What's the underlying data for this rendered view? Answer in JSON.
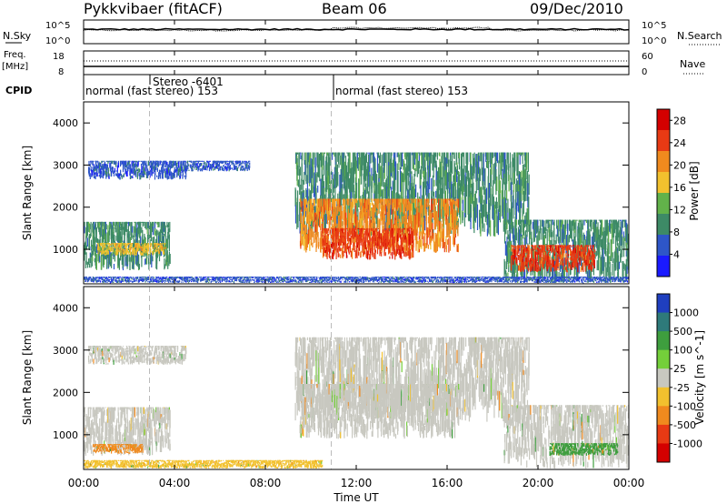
{
  "header": {
    "site": "Pykkvibaer (fitACF)",
    "beam": "Beam 06",
    "date": "09/Dec/2010"
  },
  "noise_panel": {
    "left_label": "N.Sky",
    "right_label": "N.Search",
    "left_ticks": [
      "10^5",
      "10^0"
    ],
    "right_ticks": [
      "10^5",
      "10^0"
    ]
  },
  "freq_panel": {
    "left_label_top": "Freq.",
    "left_label_bottom": "[MHz]",
    "left_ticks": [
      "18",
      "8"
    ],
    "right_ticks": [
      "60",
      "0"
    ],
    "right_label": "Nave"
  },
  "cpid": {
    "label": "CPID",
    "segments": [
      {
        "start_hour": 0,
        "label": "normal (fast stereo) 153"
      },
      {
        "start_hour": 2.9,
        "label": "Stereo -6401"
      },
      {
        "start_hour": 10.9,
        "label": "normal (fast stereo) 153"
      }
    ]
  },
  "x_axis": {
    "label": "Time UT",
    "ticks": [
      "00:00",
      "04:00",
      "08:00",
      "12:00",
      "16:00",
      "20:00",
      "00:00"
    ],
    "range_hours": [
      0,
      24
    ]
  },
  "chart_data": [
    {
      "type": "heatmap",
      "ylabel": "Slant Range [km]",
      "ylim": [
        180,
        4500
      ],
      "y_ticks": [
        1000,
        2000,
        3000,
        4000
      ],
      "colorbar": {
        "label": "Power [dB]",
        "ticks": [
          4,
          8,
          12,
          16,
          20,
          24,
          28
        ],
        "range": [
          0,
          30
        ],
        "colors": [
          "#1a1aff",
          "#2e56c8",
          "#3d8a66",
          "#62b24a",
          "#f2c12e",
          "#f08a1e",
          "#e83a14",
          "#d40000"
        ]
      },
      "regions": [
        {
          "t": [
            0,
            3.8
          ],
          "r": [
            500,
            1650
          ],
          "level": 9
        },
        {
          "t": [
            0.6,
            3.6
          ],
          "r": [
            850,
            1150
          ],
          "level": 18
        },
        {
          "t": [
            0.2,
            4.5
          ],
          "r": [
            2650,
            3100
          ],
          "level": 6
        },
        {
          "t": [
            4.5,
            7.3
          ],
          "r": [
            2850,
            3100
          ],
          "level": 5
        },
        {
          "t": [
            9.3,
            19.6
          ],
          "r": [
            1300,
            3300
          ],
          "level": 10
        },
        {
          "t": [
            9.5,
            16.5
          ],
          "r": [
            900,
            2200
          ],
          "level": 20
        },
        {
          "t": [
            10.5,
            14.5
          ],
          "r": [
            750,
            1500
          ],
          "level": 26
        },
        {
          "t": [
            18.5,
            24
          ],
          "r": [
            200,
            1700
          ],
          "level": 10
        },
        {
          "t": [
            18.8,
            22.5
          ],
          "r": [
            450,
            1100
          ],
          "level": 25
        },
        {
          "t": [
            0,
            24
          ],
          "r": [
            200,
            350
          ],
          "level": 7
        }
      ]
    },
    {
      "type": "heatmap",
      "ylabel": "Slant Range [km]",
      "ylim": [
        180,
        4500
      ],
      "y_ticks": [
        1000,
        2000,
        3000,
        4000
      ],
      "colorbar": {
        "label": "Velocity [m s^-1]",
        "ticks": [
          1000,
          500,
          100,
          25,
          -25,
          -100,
          -500,
          -1000
        ],
        "colors": [
          "#1f3fbf",
          "#2e7a7a",
          "#3e9e3e",
          "#74cf3a",
          "#c8c8c0",
          "#f2c12e",
          "#f08a1e",
          "#e83a14",
          "#d40000"
        ]
      },
      "regions": [
        {
          "t": [
            0,
            3.8
          ],
          "r": [
            500,
            1650
          ],
          "velocity": 0
        },
        {
          "t": [
            0.4,
            2.6
          ],
          "r": [
            550,
            780
          ],
          "velocity": -300
        },
        {
          "t": [
            0.2,
            4.5
          ],
          "r": [
            2650,
            3100
          ],
          "velocity": 0
        },
        {
          "t": [
            9.3,
            19.6
          ],
          "r": [
            1300,
            3300
          ],
          "velocity": 0
        },
        {
          "t": [
            9.5,
            16.5
          ],
          "r": [
            900,
            2200
          ],
          "velocity": 20
        },
        {
          "t": [
            18.5,
            24
          ],
          "r": [
            200,
            1700
          ],
          "velocity": 0
        },
        {
          "t": [
            20.5,
            23.5
          ],
          "r": [
            500,
            800
          ],
          "velocity": 300
        },
        {
          "t": [
            0,
            10.5
          ],
          "r": [
            200,
            400
          ],
          "velocity": -80
        }
      ]
    }
  ]
}
